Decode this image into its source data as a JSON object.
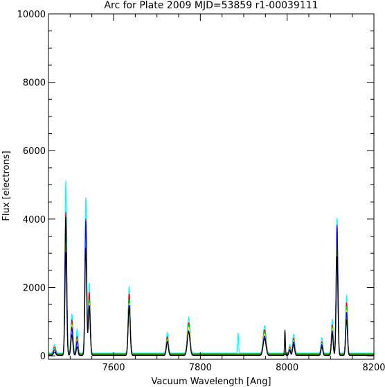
{
  "chart_data": {
    "type": "line",
    "title": "Arc for Plate 2009   MJD=53859   r1-00039111",
    "xlabel": "Vacuum Wavelength [Ang]",
    "ylabel": "Flux [electrons]",
    "xlim": [
      7450,
      8200
    ],
    "ylim": [
      -100,
      10000
    ],
    "xticks": [
      7600,
      7800,
      8000,
      8200
    ],
    "yticks": [
      0,
      2000,
      4000,
      6000,
      8000,
      10000
    ],
    "grid": false,
    "legend": "none",
    "lines": [
      {
        "x": 7464,
        "w": 2.5
      },
      {
        "x": 7490,
        "w": 2.0
      },
      {
        "x": 7504,
        "w": 2.2
      },
      {
        "x": 7516,
        "w": 2.0
      },
      {
        "x": 7536,
        "w": 2.0
      },
      {
        "x": 7544,
        "w": 2.2
      },
      {
        "x": 7636,
        "w": 2.3
      },
      {
        "x": 7724,
        "w": 2.3
      },
      {
        "x": 7773,
        "w": 3.0
      },
      {
        "x": 7887,
        "w": 1.2
      },
      {
        "x": 7948,
        "w": 3.2
      },
      {
        "x": 7995,
        "w": 1.0
      },
      {
        "x": 8006,
        "w": 1.8
      },
      {
        "x": 8015,
        "w": 2.2
      },
      {
        "x": 8080,
        "w": 2.0
      },
      {
        "x": 8104,
        "w": 2.0
      },
      {
        "x": 8115,
        "w": 2.0
      },
      {
        "x": 8137,
        "w": 2.0
      }
    ],
    "series": [
      {
        "color": "#00ffff",
        "baseline": 80,
        "peaks": [
          250,
          5050,
          1150,
          700,
          4550,
          2050,
          1950,
          600,
          1050,
          600,
          800,
          0,
          250,
          550,
          450,
          1000,
          3950,
          1700
        ]
      },
      {
        "color": "#ff0000",
        "baseline": 60,
        "peaks": [
          200,
          4150,
          1000,
          500,
          3950,
          1800,
          1750,
          500,
          900,
          0,
          700,
          0,
          200,
          450,
          350,
          850,
          3650,
          1500
        ]
      },
      {
        "color": "#00cc00",
        "baseline": 50,
        "peaks": [
          180,
          3700,
          900,
          450,
          3650,
          1600,
          1600,
          450,
          850,
          0,
          650,
          0,
          180,
          420,
          330,
          800,
          3550,
          1400
        ]
      },
      {
        "color": "#ffff00",
        "baseline": 40,
        "peaks": [
          160,
          3300,
          850,
          420,
          3400,
          1500,
          1500,
          420,
          800,
          0,
          600,
          0,
          170,
          400,
          310,
          750,
          3400,
          1300
        ]
      },
      {
        "color": "#0000ff",
        "baseline": 30,
        "peaks": [
          150,
          3000,
          800,
          400,
          3900,
          1450,
          1450,
          400,
          700,
          0,
          550,
          0,
          160,
          380,
          300,
          700,
          3800,
          1250
        ]
      },
      {
        "color": "#000000",
        "baseline": 10,
        "peaks": [
          100,
          4050,
          600,
          250,
          3150,
          1450,
          1450,
          400,
          700,
          0,
          500,
          750,
          150,
          320,
          250,
          650,
          2900,
          1050
        ]
      }
    ]
  }
}
